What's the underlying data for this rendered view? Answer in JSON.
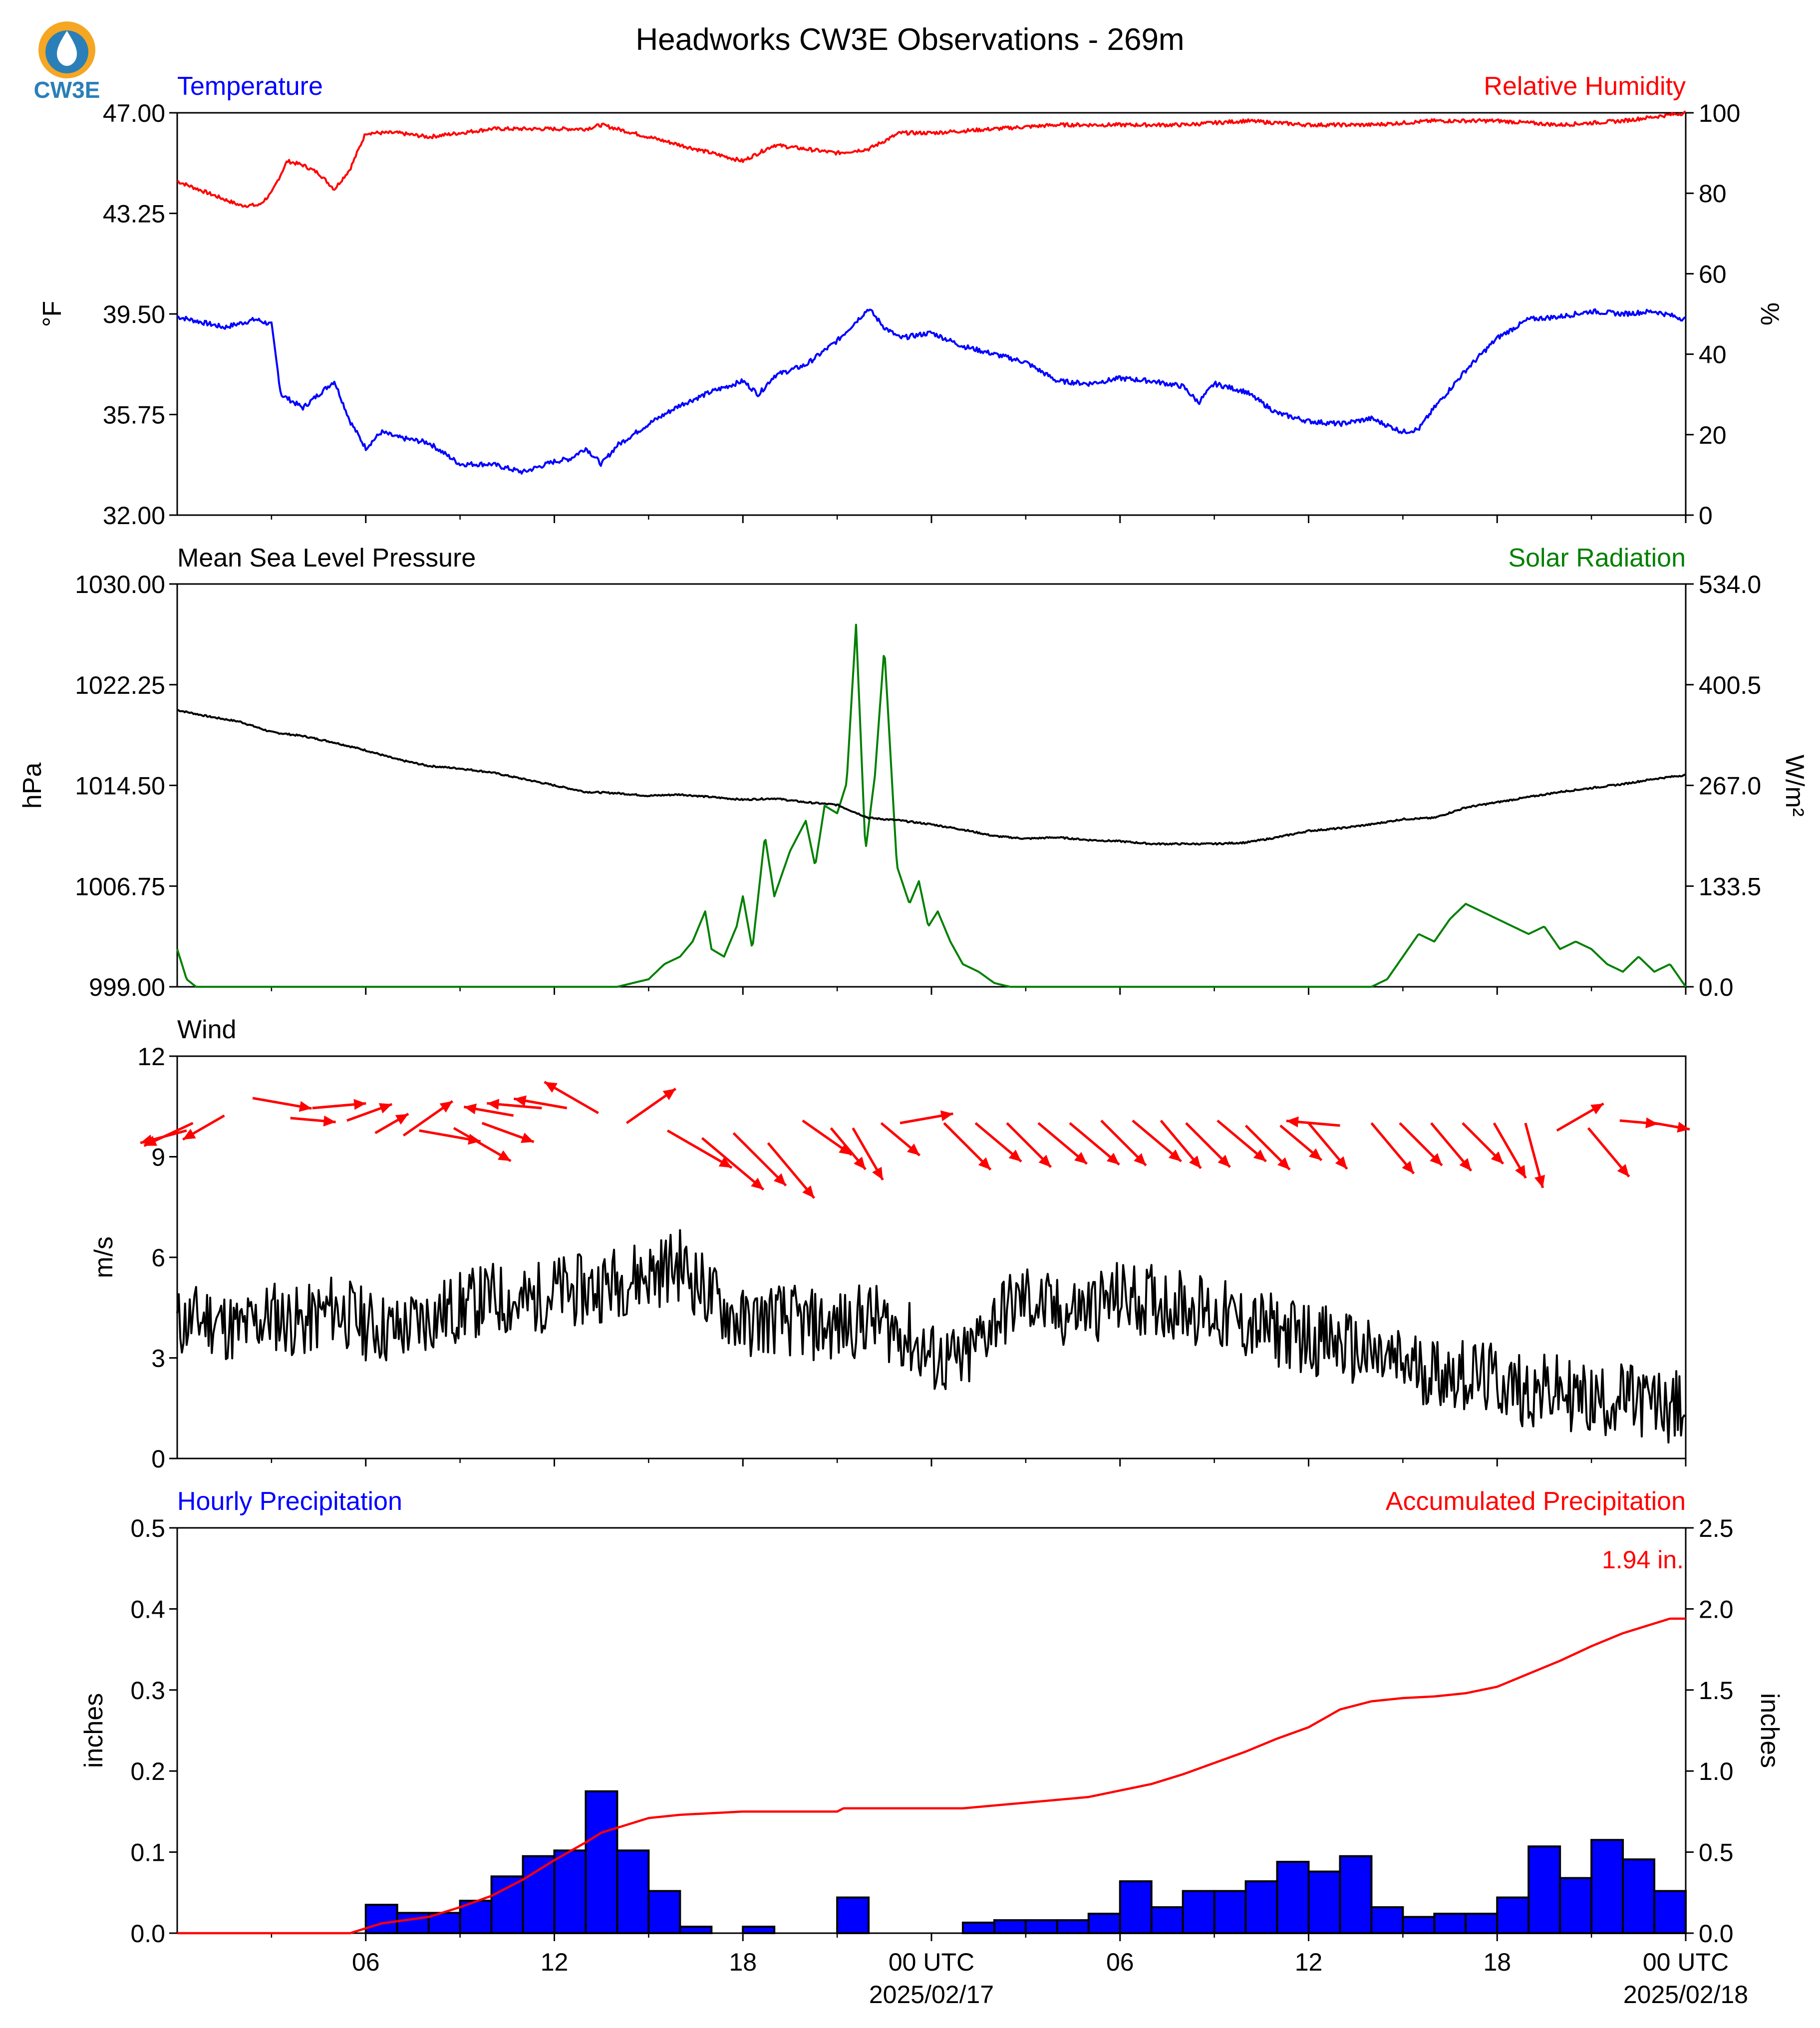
{
  "logo": {
    "text": "CW3E",
    "colors": {
      "ring": "#f5a623",
      "drop": "#2a7fb8",
      "text": "#2a7fb8"
    }
  },
  "figure": {
    "title": "Headworks CW3E Observations - 269m"
  },
  "colors": {
    "blue": "#0000ff",
    "red": "#ff0000",
    "green": "#008000",
    "black": "#000000"
  },
  "time_axis": {
    "start_hour": 0,
    "end_hour": 48,
    "tick_hours": [
      6,
      12,
      18,
      24,
      30,
      36,
      42,
      48
    ],
    "tick_labels": [
      "06",
      "12",
      "18",
      "00 UTC",
      "06",
      "12",
      "18",
      "00 UTC"
    ],
    "date_labels": [
      {
        "hour": 24,
        "text": "2025/02/17"
      },
      {
        "hour": 48,
        "text": "2025/02/18"
      }
    ]
  },
  "chart_data": [
    {
      "type": "line",
      "panel": "temperature-humidity",
      "left_title": "Temperature",
      "right_title": "Relative Humidity",
      "ylabel_left": "°F",
      "ylabel_right": "%",
      "ylim_left": [
        32.0,
        47.0
      ],
      "yticks_left": [
        "32.00",
        "35.75",
        "39.50",
        "43.25",
        "47.00"
      ],
      "ylim_right": [
        0,
        100
      ],
      "yticks_right": [
        "0",
        "20",
        "40",
        "60",
        "80",
        "100"
      ],
      "series": [
        {
          "name": "Temperature",
          "axis": "left",
          "color": "#0000ff",
          "x": [
            0,
            1.5,
            2.5,
            3,
            3.3,
            4,
            4.6,
            5,
            5.5,
            6,
            6.5,
            7,
            8,
            9,
            10,
            11,
            12,
            12.5,
            13,
            13.5,
            14,
            15,
            16,
            17,
            18,
            18.5,
            19,
            20,
            21,
            22,
            22.5,
            23,
            24,
            25,
            26,
            27,
            28,
            29,
            30,
            31,
            32,
            32.5,
            33,
            34,
            35,
            36,
            37,
            38,
            39,
            39.5,
            40,
            41,
            42,
            43,
            44,
            45,
            46,
            47,
            48
          ],
          "y": [
            39.4,
            39.0,
            39.3,
            39.1,
            36.5,
            36.0,
            36.6,
            37.0,
            35.5,
            34.5,
            35.1,
            34.9,
            34.7,
            33.9,
            33.9,
            33.6,
            34.0,
            34.1,
            34.5,
            33.9,
            34.6,
            35.4,
            36.1,
            36.6,
            37.0,
            36.5,
            37.2,
            37.6,
            38.5,
            39.7,
            39.0,
            38.6,
            38.8,
            38.3,
            38.0,
            37.7,
            37.0,
            36.9,
            37.1,
            37.0,
            36.8,
            36.2,
            36.9,
            36.6,
            35.8,
            35.5,
            35.4,
            35.6,
            35.1,
            35.2,
            36.0,
            37.4,
            38.6,
            39.3,
            39.4,
            39.6,
            39.5,
            39.6,
            39.3
          ]
        },
        {
          "name": "Relative Humidity",
          "axis": "right",
          "color": "#ff0000",
          "x": [
            0,
            1,
            2,
            2.6,
            3,
            3.5,
            4,
            4.5,
            5,
            5.5,
            6,
            7,
            8,
            9,
            10,
            11,
            12,
            13,
            13.5,
            14,
            15,
            16,
            17,
            18,
            19,
            20,
            21,
            22,
            23,
            24,
            26,
            28,
            30,
            32,
            34,
            36,
            38,
            40,
            42,
            44,
            46,
            48
          ],
          "y": [
            83,
            80,
            77,
            77,
            80,
            88,
            87,
            85,
            81,
            86,
            95,
            95,
            94,
            95,
            96,
            96,
            96,
            96,
            97,
            96,
            94,
            92,
            90,
            88,
            92,
            91,
            90,
            91,
            95,
            95,
            96,
            97,
            97,
            97,
            98,
            97,
            97,
            98,
            98,
            97,
            98,
            100
          ]
        }
      ]
    },
    {
      "type": "line",
      "panel": "pressure-solar",
      "left_title": "Mean Sea Level Pressure",
      "right_title": "Solar Radiation",
      "ylabel_left": "hPa",
      "ylabel_right": "W/m²",
      "ylim_left": [
        999.0,
        1030.0
      ],
      "yticks_left": [
        "999.00",
        "1006.75",
        "1014.50",
        "1022.25",
        "1030.00"
      ],
      "ylim_right": [
        0.0,
        534.0
      ],
      "yticks_right": [
        "0.0",
        "133.5",
        "267.0",
        "400.5",
        "534.0"
      ],
      "series": [
        {
          "name": "Mean Sea Level Pressure",
          "axis": "left",
          "color": "#000000",
          "x": [
            0,
            1,
            2,
            3,
            4,
            5,
            6,
            7,
            8,
            9,
            10,
            11,
            12,
            13,
            14,
            15,
            16,
            17,
            18,
            19,
            20,
            21,
            22,
            23,
            24,
            25,
            26,
            27,
            28,
            29,
            30,
            31,
            32,
            33,
            34,
            35,
            36,
            37,
            38,
            39,
            40,
            41,
            42,
            43,
            44,
            45,
            46,
            47,
            48
          ],
          "y": [
            1020.3,
            1019.8,
            1019.4,
            1018.6,
            1018.3,
            1017.8,
            1017.2,
            1016.5,
            1016.0,
            1015.8,
            1015.5,
            1015.0,
            1014.5,
            1014.0,
            1013.9,
            1013.7,
            1013.8,
            1013.6,
            1013.4,
            1013.5,
            1013.2,
            1013.0,
            1012.0,
            1011.8,
            1011.5,
            1011.1,
            1010.6,
            1010.4,
            1010.5,
            1010.3,
            1010.2,
            1010.0,
            1010.0,
            1010.0,
            1010.1,
            1010.5,
            1011.0,
            1011.2,
            1011.5,
            1011.9,
            1012.0,
            1012.8,
            1013.2,
            1013.6,
            1014.0,
            1014.3,
            1014.6,
            1015.0,
            1015.3
          ]
        },
        {
          "name": "Solar Radiation",
          "axis": "right",
          "color": "#008000",
          "x": [
            0,
            0.3,
            0.6,
            14,
            15,
            15.5,
            16,
            16.4,
            16.8,
            17,
            17.4,
            17.8,
            18,
            18.3,
            18.7,
            19,
            19.5,
            20,
            20.3,
            20.6,
            21,
            21.3,
            21.6,
            21.9,
            22.2,
            22.5,
            22.9,
            23.3,
            23.6,
            23.9,
            24.2,
            24.6,
            25,
            25.5,
            26,
            26.5,
            27,
            38,
            38.5,
            39,
            39.5,
            40,
            40.5,
            41,
            41.5,
            42,
            42.5,
            43,
            43.5,
            44,
            44.5,
            45,
            45.5,
            46,
            46.5,
            47,
            47.5,
            48
          ],
          "y": [
            50,
            10,
            0,
            0,
            10,
            30,
            40,
            60,
            100,
            50,
            40,
            80,
            120,
            50,
            200,
            120,
            180,
            220,
            160,
            240,
            230,
            270,
            480,
            180,
            280,
            450,
            160,
            110,
            140,
            80,
            100,
            60,
            30,
            20,
            5,
            0,
            0,
            0,
            10,
            40,
            70,
            60,
            90,
            110,
            100,
            90,
            80,
            70,
            80,
            50,
            60,
            50,
            30,
            20,
            40,
            20,
            30,
            0
          ]
        }
      ]
    },
    {
      "type": "line",
      "panel": "wind",
      "left_title": "Wind",
      "ylabel_left": "m/s",
      "ylim_left": [
        0,
        12
      ],
      "yticks_left": [
        "0",
        "3",
        "6",
        "9",
        "12"
      ],
      "series": [
        {
          "name": "Wind",
          "axis": "left",
          "color": "#000000",
          "x": [
            0,
            1,
            2,
            3,
            4,
            5,
            6,
            7,
            8,
            9,
            10,
            11,
            12,
            13,
            14,
            15,
            16,
            17,
            18,
            19,
            20,
            21,
            22,
            23,
            24,
            25,
            26,
            27,
            28,
            29,
            30,
            31,
            32,
            33,
            34,
            35,
            36,
            37,
            38,
            39,
            40,
            41,
            42,
            43,
            44,
            45,
            46,
            47,
            48
          ],
          "y": [
            4.0,
            4.2,
            3.8,
            4.3,
            4.0,
            4.5,
            4.0,
            3.8,
            4.2,
            4.5,
            4.8,
            4.6,
            5.0,
            5.0,
            5.3,
            5.5,
            5.8,
            4.8,
            4.0,
            4.2,
            4.0,
            3.9,
            4.2,
            3.8,
            3.0,
            2.8,
            4.2,
            4.8,
            4.3,
            4.5,
            4.8,
            4.7,
            4.6,
            4.3,
            4.0,
            3.8,
            3.6,
            3.4,
            3.0,
            2.8,
            2.6,
            2.5,
            2.3,
            2.0,
            2.0,
            1.7,
            1.8,
            1.6,
            1.5
          ],
          "noise": 1.1
        }
      ],
      "vectors": {
        "color": "#ff0000",
        "x": [
          0.3,
          0.5,
          1.5,
          2.4,
          3.6,
          4.3,
          5.4,
          6.3,
          7.2,
          7.7,
          8.8,
          9.7,
          10.7,
          11.6,
          12.4,
          13.4,
          14.3,
          15.6,
          16.7,
          17.7,
          18.8,
          19.9,
          20.8,
          21.5,
          22.4,
          23.0,
          24.4,
          25.4,
          26.4,
          27.4,
          28.4,
          29.4,
          30.4,
          31.3,
          32.1,
          33.1,
          34.0,
          35.1,
          36.0,
          37.0,
          38.0,
          38.9,
          39.9,
          40.9,
          41.9,
          42.9,
          43.9,
          44.9,
          45.9,
          47.0
        ],
        "dir_deg": [
          75,
          65,
          60,
          280,
          275,
          265,
          250,
          240,
          235,
          280,
          300,
          290,
          100,
          95,
          100,
          120,
          235,
          300,
          310,
          315,
          320,
          305,
          320,
          330,
          310,
          260,
          315,
          310,
          315,
          310,
          310,
          315,
          310,
          320,
          315,
          310,
          315,
          310,
          320,
          95,
          320,
          315,
          320,
          315,
          330,
          345,
          240,
          320,
          275,
          280
        ],
        "speed": [
          4,
          4.5,
          4,
          5,
          3.8,
          4.5,
          4,
          3.2,
          5,
          5.2,
          5.5,
          4.6,
          4.2,
          4.6,
          4.5,
          5.2,
          5,
          6.2,
          6.7,
          6.2,
          6,
          5,
          4.5,
          5,
          4.2,
          4.5,
          5.5,
          5,
          5.2,
          5.3,
          5.4,
          5.3,
          5.3,
          5.2,
          5.2,
          5.3,
          5.2,
          4.5,
          5.0,
          4.5,
          5.5,
          5.0,
          5.2,
          4.8,
          5.3,
          5.6,
          4.5,
          5.3,
          3.2,
          3.0
        ]
      }
    },
    {
      "type": "bar",
      "panel": "precipitation",
      "left_title": "Hourly Precipitation",
      "right_title": "Accumulated Precipitation",
      "ylabel_left": "inches",
      "ylabel_right": "inches",
      "ylim_left": [
        0.0,
        0.5
      ],
      "yticks_left": [
        "0.0",
        "0.1",
        "0.2",
        "0.3",
        "0.4",
        "0.5"
      ],
      "ylim_right": [
        0.0,
        2.5
      ],
      "yticks_right": [
        "0.0",
        "0.5",
        "1.0",
        "1.5",
        "2.0",
        "2.5"
      ],
      "annotation": "1.94 in.",
      "hours": [
        6,
        7,
        8,
        9,
        10,
        11,
        12,
        13,
        14,
        15,
        16,
        18,
        21,
        25,
        26,
        27,
        28,
        29,
        30,
        31,
        32,
        33,
        34,
        35,
        36,
        37,
        38,
        39,
        40,
        41,
        42,
        43,
        44,
        45,
        46,
        47
      ],
      "values": [
        0.035,
        0.025,
        0.025,
        0.04,
        0.07,
        0.095,
        0.102,
        0.175,
        0.102,
        0.052,
        0.008,
        0.008,
        0.044,
        0.013,
        0.016,
        0.016,
        0.016,
        0.024,
        0.064,
        0.032,
        0.052,
        0.052,
        0.064,
        0.088,
        0.076,
        0.095,
        0.032,
        0.02,
        0.024,
        0.024,
        0.044,
        0.107,
        0.068,
        0.115,
        0.091,
        0.052
      ],
      "accum_x": [
        0,
        5.5,
        6.5,
        8,
        9,
        10,
        11,
        12,
        13,
        13.5,
        14,
        15,
        16,
        17,
        18,
        21,
        21.2,
        25,
        29,
        30,
        31,
        32,
        33,
        34,
        35,
        36,
        37,
        38,
        39,
        40,
        41,
        42,
        43,
        44,
        45,
        46,
        47,
        47.5
      ],
      "accum_y": [
        0,
        0,
        0.06,
        0.1,
        0.16,
        0.23,
        0.33,
        0.45,
        0.56,
        0.62,
        0.65,
        0.71,
        0.73,
        0.74,
        0.75,
        0.75,
        0.77,
        0.77,
        0.84,
        0.88,
        0.92,
        0.98,
        1.05,
        1.12,
        1.2,
        1.27,
        1.38,
        1.43,
        1.45,
        1.46,
        1.48,
        1.52,
        1.6,
        1.68,
        1.77,
        1.85,
        1.91,
        1.94
      ]
    }
  ]
}
